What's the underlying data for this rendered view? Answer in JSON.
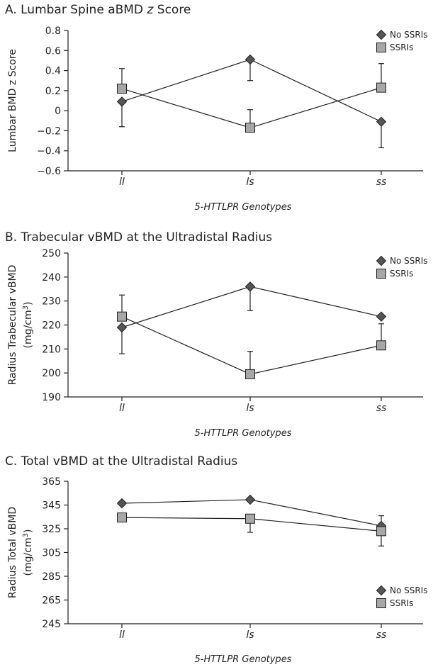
{
  "x_axis_title": "5-HTTLPR Genotypes",
  "legend": [
    "No SSRIs",
    "SSRIs"
  ],
  "colors": {
    "no_ssri_fill": "#555555",
    "ssri_fill": "#a7a7a7",
    "stroke": "#231f20"
  },
  "chart_data": [
    {
      "type": "line",
      "title_prefix": "A. Lumbar Spine aBMD ",
      "title_italic": "z",
      "title_suffix": " Score",
      "ylabel_line1": "Lumbar BMD z Score",
      "ylabel_line2": "",
      "ylabel_sup": "",
      "ylabel_end": "",
      "categories": [
        "ll",
        "ls",
        "ss"
      ],
      "ylim": [
        -0.6,
        0.8
      ],
      "yticks": [
        -0.6,
        -0.4,
        -0.2,
        0,
        0.2,
        0.4,
        0.6,
        0.8
      ],
      "ytick_labels": [
        "−0.6",
        "−0.4",
        "−0.2",
        "0",
        "0.2",
        "0.4",
        "0.6",
        "0.8"
      ],
      "legend_position": "top-right",
      "series": [
        {
          "name": "No SSRIs",
          "marker": "diamond",
          "values": [
            0.09,
            0.51,
            -0.11
          ],
          "err_low": [
            0.25,
            0.21,
            0.26
          ],
          "err_high": [
            0,
            0,
            0
          ]
        },
        {
          "name": "SSRIs",
          "marker": "square",
          "values": [
            0.22,
            -0.17,
            0.23
          ],
          "err_low": [
            0,
            0,
            0
          ],
          "err_high": [
            0.2,
            0.18,
            0.24
          ]
        }
      ]
    },
    {
      "type": "line",
      "title_prefix": "B. Trabecular vBMD at the Ultradistal Radius",
      "title_italic": "",
      "title_suffix": "",
      "ylabel_line1": "Radius Trabecular vBMD",
      "ylabel_line2": "(mg/cm",
      "ylabel_sup": "3",
      "ylabel_end": ")",
      "categories": [
        "ll",
        "ls",
        "ss"
      ],
      "ylim": [
        190,
        250
      ],
      "yticks": [
        190,
        200,
        210,
        220,
        230,
        240,
        250
      ],
      "ytick_labels": [
        "190",
        "200",
        "210",
        "220",
        "230",
        "240",
        "250"
      ],
      "legend_position": "top-right",
      "series": [
        {
          "name": "No SSRIs",
          "marker": "diamond",
          "values": [
            219,
            236,
            223.5
          ],
          "err_low": [
            11,
            10,
            0
          ],
          "err_high": [
            0,
            0,
            0
          ]
        },
        {
          "name": "SSRIs",
          "marker": "square",
          "values": [
            223.5,
            199.5,
            211.5
          ],
          "err_low": [
            0,
            0,
            0
          ],
          "err_high": [
            9,
            9.5,
            9
          ]
        }
      ]
    },
    {
      "type": "line",
      "title_prefix": "C. Total vBMD at the Ultradistal Radius",
      "title_italic": "",
      "title_suffix": "",
      "ylabel_line1": "Radius Total vBMD",
      "ylabel_line2": "(mg/cm",
      "ylabel_sup": "3",
      "ylabel_end": ")",
      "categories": [
        "ll",
        "ls",
        "ss"
      ],
      "ylim": [
        245,
        365
      ],
      "yticks": [
        245,
        265,
        285,
        305,
        325,
        345,
        365
      ],
      "ytick_labels": [
        "245",
        "265",
        "285",
        "305",
        "325",
        "345",
        "365"
      ],
      "legend_position": "bottom-right",
      "series": [
        {
          "name": "No SSRIs",
          "marker": "diamond",
          "values": [
            346.5,
            349.5,
            327.5
          ],
          "err_low": [
            0,
            0,
            0
          ],
          "err_high": [
            0,
            0,
            8.5
          ]
        },
        {
          "name": "SSRIs",
          "marker": "square",
          "values": [
            334.5,
            333.5,
            323
          ],
          "err_low": [
            0,
            11.5,
            12.5
          ],
          "err_high": [
            0,
            0,
            0
          ]
        }
      ]
    }
  ]
}
